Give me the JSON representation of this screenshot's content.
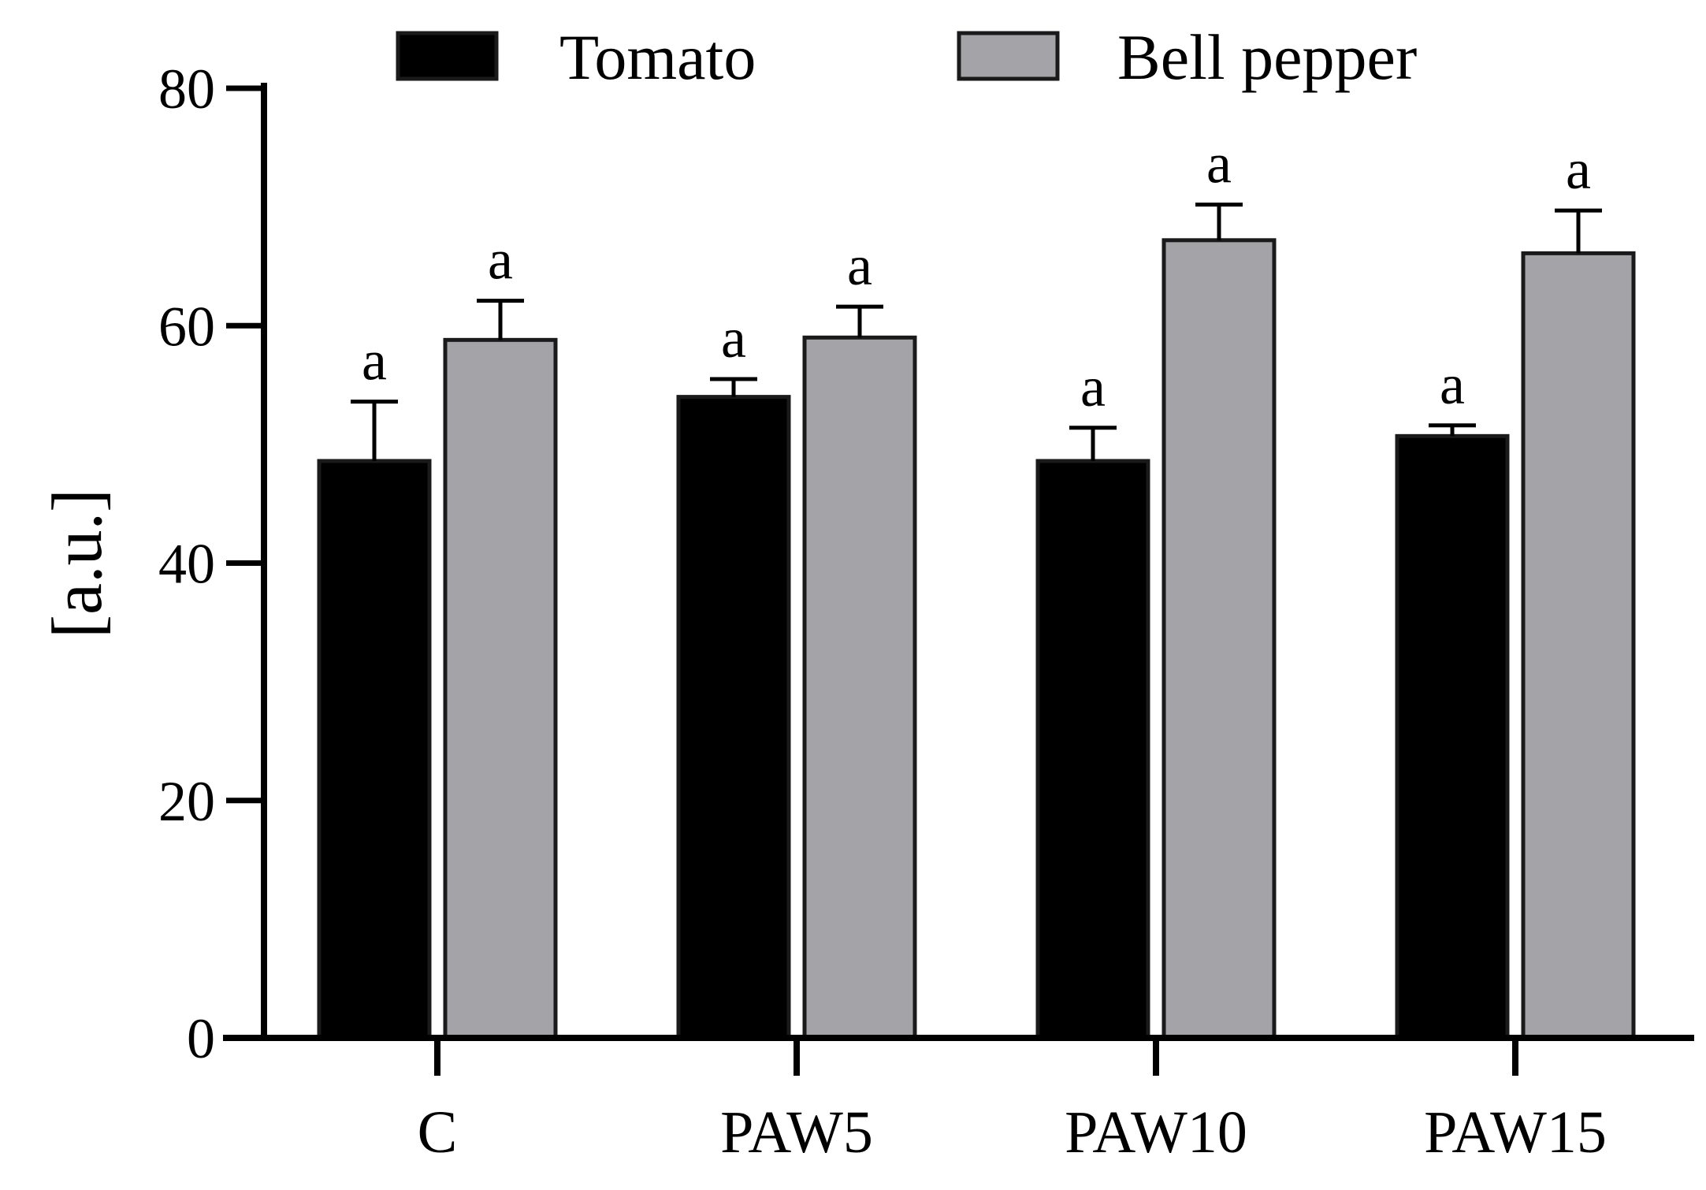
{
  "chart_data": {
    "type": "bar",
    "title": "",
    "xlabel": "",
    "ylabel": "[a.u.]",
    "ylim": [
      0,
      80
    ],
    "yticks": [
      0,
      20,
      40,
      60,
      80
    ],
    "grid": false,
    "legend": "top-center",
    "categories": [
      "C",
      "PAW5",
      "PAW10",
      "PAW15"
    ],
    "series": [
      {
        "name": "Tomato",
        "color": "#000000",
        "values": [
          48.6,
          54.0,
          48.6,
          50.7
        ],
        "errors": [
          5.0,
          1.5,
          2.8,
          0.9
        ],
        "significance": [
          "a",
          "a",
          "a",
          "a"
        ]
      },
      {
        "name": "Bell pepper",
        "color": "#a3a3a8",
        "values": [
          58.8,
          59.0,
          67.2,
          66.1
        ],
        "errors": [
          3.3,
          2.6,
          3.0,
          3.6
        ],
        "significance": [
          "a",
          "a",
          "a",
          "a"
        ]
      }
    ]
  }
}
